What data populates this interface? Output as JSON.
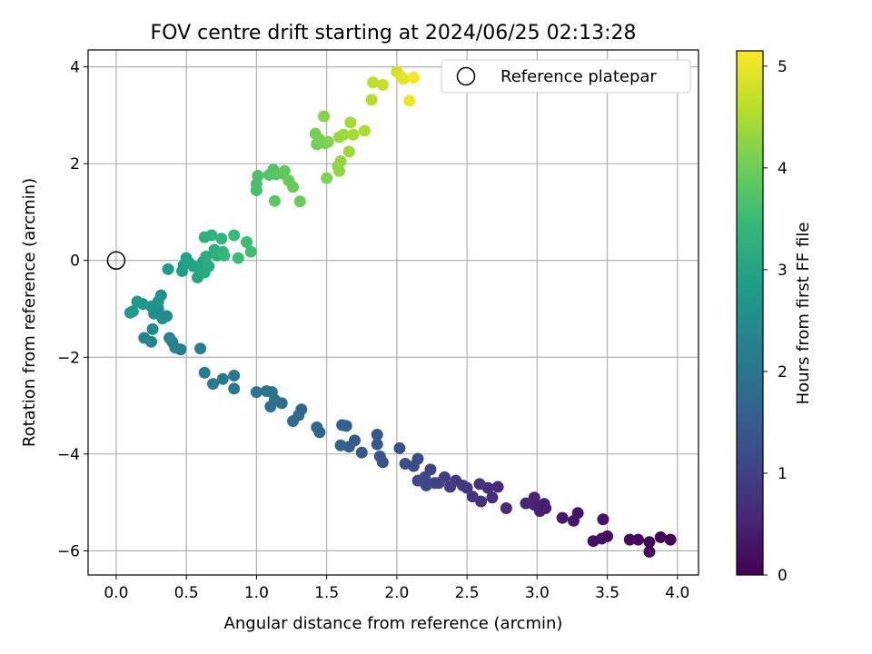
{
  "chart_data": {
    "type": "scatter",
    "title": "FOV centre drift starting at 2024/06/25 02:13:28",
    "xlabel": "Angular distance from reference (arcmin)",
    "ylabel": "Rotation from reference (arcmin)",
    "xlim": [
      -0.2,
      4.15
    ],
    "ylim": [
      -6.5,
      4.35
    ],
    "xticks": [
      "0.0",
      "0.5",
      "1.0",
      "1.5",
      "2.0",
      "2.5",
      "3.0",
      "3.5",
      "4.0"
    ],
    "yticks": [
      "−6",
      "−4",
      "−2",
      "0",
      "2",
      "4"
    ],
    "grid": true,
    "legend": {
      "placement": "top-right",
      "label": "Reference platepar"
    },
    "reference_point": {
      "x": 0.0,
      "y": 0.0
    },
    "colorbar": {
      "label": "Hours from first FF file",
      "colormap": "viridis",
      "range": [
        0,
        5.15
      ],
      "ticks": [
        "0",
        "1",
        "2",
        "3",
        "4",
        "5"
      ]
    },
    "colors": {
      "viridis": [
        "#440154",
        "#482878",
        "#3e4989",
        "#31688e",
        "#26828e",
        "#1f9e89",
        "#35b779",
        "#6ece58",
        "#b5de2b",
        "#fde725"
      ]
    },
    "points": [
      [
        3.95,
        -5.77,
        0.02
      ],
      [
        3.88,
        -5.72,
        0.05
      ],
      [
        3.8,
        -5.82,
        0.07
      ],
      [
        3.8,
        -6.02,
        0.09
      ],
      [
        3.72,
        -5.77,
        0.12
      ],
      [
        3.66,
        -5.77,
        0.15
      ],
      [
        3.5,
        -5.7,
        0.18
      ],
      [
        3.46,
        -5.75,
        0.2
      ],
      [
        3.4,
        -5.8,
        0.23
      ],
      [
        3.47,
        -5.35,
        0.26
      ],
      [
        3.29,
        -5.22,
        0.3
      ],
      [
        3.26,
        -5.38,
        0.33
      ],
      [
        3.18,
        -5.32,
        0.36
      ],
      [
        3.06,
        -5.12,
        0.4
      ],
      [
        3.05,
        -5.03,
        0.43
      ],
      [
        3.02,
        -5.18,
        0.46
      ],
      [
        2.98,
        -5.05,
        0.5
      ],
      [
        2.98,
        -4.9,
        0.53
      ],
      [
        2.92,
        -5.02,
        0.56
      ],
      [
        2.78,
        -5.12,
        0.6
      ],
      [
        2.72,
        -4.68,
        0.63
      ],
      [
        2.68,
        -4.9,
        0.66
      ],
      [
        2.65,
        -4.7,
        0.7
      ],
      [
        2.6,
        -4.98,
        0.73
      ],
      [
        2.59,
        -4.62,
        0.76
      ],
      [
        2.54,
        -4.88,
        0.8
      ],
      [
        2.5,
        -4.7,
        0.83
      ],
      [
        2.47,
        -4.65,
        0.86
      ],
      [
        2.42,
        -4.55,
        0.9
      ],
      [
        2.38,
        -4.68,
        0.93
      ],
      [
        2.34,
        -4.48,
        0.96
      ],
      [
        2.3,
        -4.6,
        1.0
      ],
      [
        2.27,
        -4.6,
        1.03
      ],
      [
        2.24,
        -4.32,
        1.06
      ],
      [
        2.21,
        -4.65,
        1.1
      ],
      [
        2.2,
        -4.48,
        1.13
      ],
      [
        2.15,
        -4.55,
        1.16
      ],
      [
        2.15,
        -4.1,
        1.2
      ],
      [
        2.12,
        -4.25,
        1.23
      ],
      [
        2.06,
        -4.2,
        1.26
      ],
      [
        2.02,
        -3.88,
        1.3
      ],
      [
        1.9,
        -4.17,
        1.33
      ],
      [
        1.88,
        -4.05,
        1.36
      ],
      [
        1.86,
        -3.8,
        1.4
      ],
      [
        1.86,
        -3.6,
        1.43
      ],
      [
        1.75,
        -3.97,
        1.46
      ],
      [
        1.7,
        -3.72,
        1.5
      ],
      [
        1.66,
        -3.85,
        1.53
      ],
      [
        1.64,
        -3.42,
        1.56
      ],
      [
        1.6,
        -3.82,
        1.6
      ],
      [
        1.61,
        -3.4,
        1.63
      ],
      [
        1.45,
        -3.55,
        1.66
      ],
      [
        1.43,
        -3.45,
        1.7
      ],
      [
        1.32,
        -3.08,
        1.73
      ],
      [
        1.3,
        -3.2,
        1.76
      ],
      [
        1.26,
        -3.32,
        1.8
      ],
      [
        1.18,
        -2.95,
        1.83
      ],
      [
        1.13,
        -2.88,
        1.86
      ],
      [
        1.1,
        -3.02,
        1.9
      ],
      [
        1.11,
        -2.72,
        1.93
      ],
      [
        1.07,
        -2.7,
        1.96
      ],
      [
        1.0,
        -2.72,
        2.0
      ],
      [
        0.84,
        -2.38,
        2.03
      ],
      [
        0.84,
        -2.65,
        2.06
      ],
      [
        0.76,
        -2.45,
        2.1
      ],
      [
        0.69,
        -2.55,
        2.13
      ],
      [
        0.63,
        -2.32,
        2.16
      ],
      [
        0.6,
        -1.82,
        2.2
      ],
      [
        0.46,
        -1.84,
        2.23
      ],
      [
        0.42,
        -1.8,
        2.26
      ],
      [
        0.4,
        -1.68,
        2.3
      ],
      [
        0.38,
        -1.6,
        2.33
      ],
      [
        0.25,
        -1.68,
        2.36
      ],
      [
        0.2,
        -1.6,
        2.4
      ],
      [
        0.26,
        -1.42,
        2.43
      ],
      [
        0.36,
        -1.15,
        2.46
      ],
      [
        0.33,
        -1.2,
        2.5
      ],
      [
        0.27,
        -1.1,
        2.53
      ],
      [
        0.3,
        -1.0,
        2.56
      ],
      [
        0.25,
        -0.95,
        2.6
      ],
      [
        0.32,
        -0.72,
        2.63
      ],
      [
        0.3,
        -0.85,
        2.66
      ],
      [
        0.19,
        -0.9,
        2.7
      ],
      [
        0.15,
        -0.85,
        2.73
      ],
      [
        0.12,
        -1.05,
        2.76
      ],
      [
        0.1,
        -1.08,
        2.8
      ],
      [
        0.37,
        -0.18,
        2.83
      ],
      [
        0.47,
        -0.22,
        2.86
      ],
      [
        0.48,
        -0.1,
        2.9
      ],
      [
        0.52,
        -0.05,
        2.93
      ],
      [
        0.5,
        0.05,
        2.96
      ],
      [
        0.55,
        -0.12,
        3.0
      ],
      [
        0.58,
        -0.35,
        3.03
      ],
      [
        0.6,
        -0.2,
        3.06
      ],
      [
        0.62,
        -0.02,
        3.1
      ],
      [
        0.63,
        -0.25,
        3.13
      ],
      [
        0.66,
        -0.12,
        3.16
      ],
      [
        0.64,
        0.08,
        3.2
      ],
      [
        0.7,
        0.22,
        3.23
      ],
      [
        0.72,
        0.1,
        3.26
      ],
      [
        0.63,
        0.48,
        3.3
      ],
      [
        0.68,
        0.52,
        3.33
      ],
      [
        0.75,
        0.45,
        3.36
      ],
      [
        0.76,
        0.18,
        3.4
      ],
      [
        0.77,
        0.1,
        3.43
      ],
      [
        0.84,
        0.52,
        3.46
      ],
      [
        0.87,
        0.05,
        3.5
      ],
      [
        0.93,
        0.38,
        3.53
      ],
      [
        0.96,
        0.18,
        3.56
      ],
      [
        1.0,
        1.45,
        3.6
      ],
      [
        1.0,
        1.58,
        3.63
      ],
      [
        1.01,
        1.75,
        3.66
      ],
      [
        1.09,
        1.77,
        3.7
      ],
      [
        1.12,
        1.88,
        3.73
      ],
      [
        1.14,
        1.78,
        3.76
      ],
      [
        1.13,
        1.23,
        3.8
      ],
      [
        1.18,
        1.8,
        3.83
      ],
      [
        1.2,
        1.85,
        3.86
      ],
      [
        1.23,
        1.65,
        3.9
      ],
      [
        1.26,
        1.52,
        3.93
      ],
      [
        1.31,
        1.22,
        3.96
      ],
      [
        1.43,
        2.4,
        4.0
      ],
      [
        1.42,
        2.62,
        4.03
      ],
      [
        1.45,
        2.5,
        4.06
      ],
      [
        1.49,
        2.42,
        4.1
      ],
      [
        1.5,
        1.7,
        4.13
      ],
      [
        1.51,
        2.45,
        4.16
      ],
      [
        1.48,
        2.98,
        4.2
      ],
      [
        1.58,
        1.95,
        4.23
      ],
      [
        1.59,
        1.85,
        4.26
      ],
      [
        1.6,
        2.05,
        4.3
      ],
      [
        1.59,
        2.55,
        4.33
      ],
      [
        1.62,
        2.6,
        4.36
      ],
      [
        1.66,
        2.25,
        4.4
      ],
      [
        1.67,
        2.85,
        4.43
      ],
      [
        1.69,
        2.6,
        4.46
      ],
      [
        1.77,
        2.68,
        4.5
      ],
      [
        1.82,
        3.32,
        4.56
      ],
      [
        1.83,
        3.68,
        4.63
      ],
      [
        1.9,
        3.63,
        4.7
      ],
      [
        2.0,
        3.9,
        4.8
      ],
      [
        2.03,
        3.8,
        4.9
      ],
      [
        2.05,
        3.75,
        4.95
      ],
      [
        2.09,
        3.3,
        5.0
      ],
      [
        2.12,
        3.78,
        5.08
      ]
    ]
  }
}
